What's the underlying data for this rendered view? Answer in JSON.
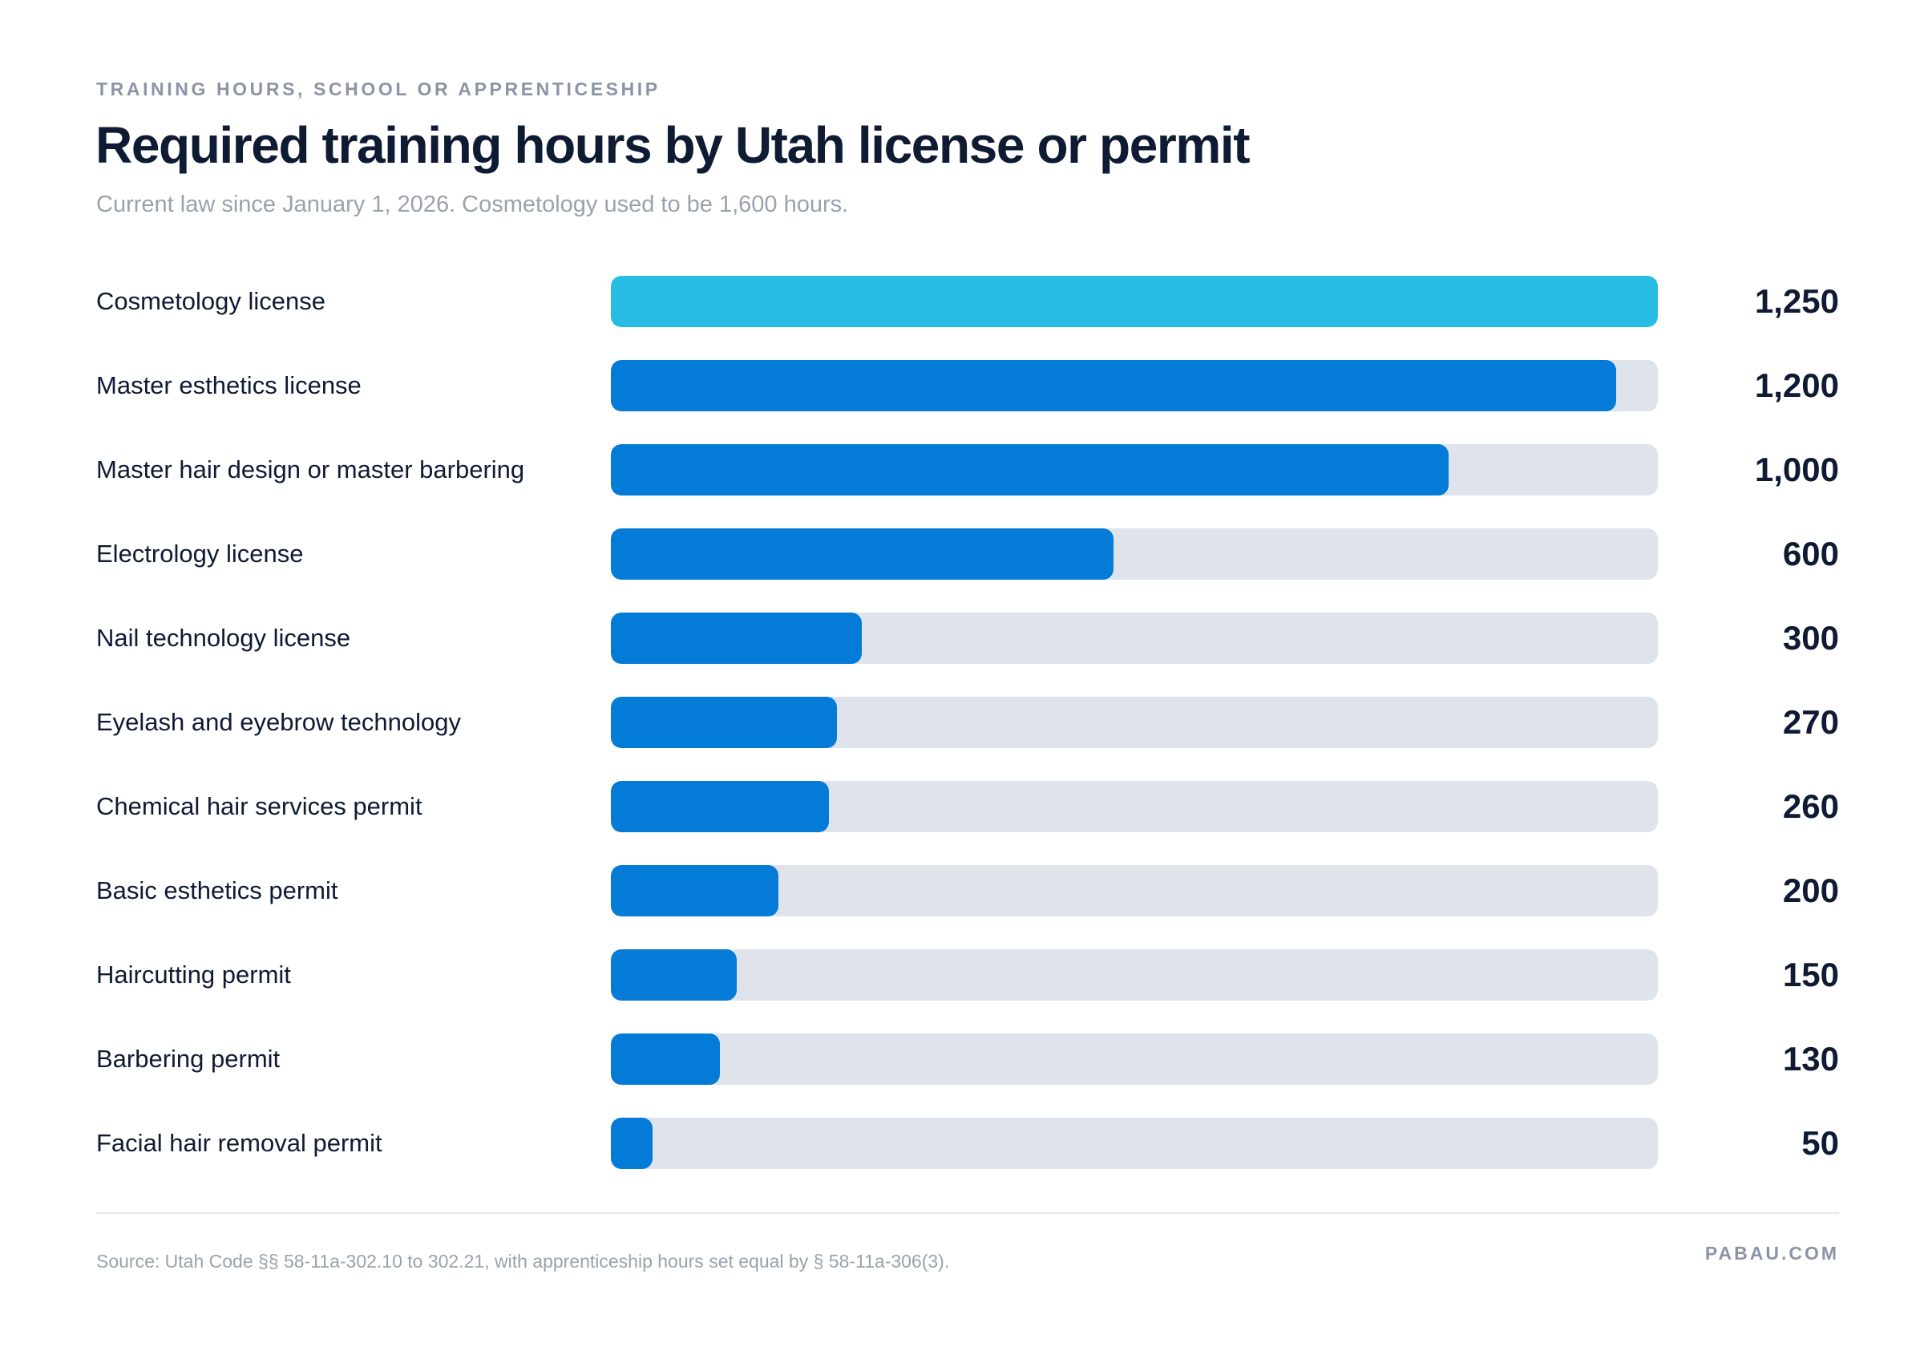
{
  "header": {
    "eyebrow": "TRAINING HOURS, SCHOOL OR APPRENTICESHIP",
    "title": "Required training hours by Utah license or permit",
    "subtitle": "Current law since January 1, 2026. Cosmetology used to be 1,600 hours."
  },
  "chart_data": {
    "type": "bar",
    "orientation": "horizontal",
    "title": "Required training hours by Utah license or permit",
    "subtitle": "Current law since January 1, 2026. Cosmetology used to be 1,600 hours.",
    "xlim": [
      0,
      1250
    ],
    "grid": false,
    "categories": [
      "Cosmetology license",
      "Master esthetics license",
      "Master hair design or master barbering",
      "Electrology license",
      "Nail technology license",
      "Eyelash and eyebrow technology",
      "Chemical hair services permit",
      "Basic esthetics permit",
      "Haircutting permit",
      "Barbering permit",
      "Facial hair removal permit"
    ],
    "values": [
      1250,
      1200,
      1000,
      600,
      300,
      270,
      260,
      200,
      150,
      130,
      50
    ],
    "value_labels": [
      "1,250",
      "1,200",
      "1,000",
      "600",
      "300",
      "270",
      "260",
      "200",
      "150",
      "130",
      "50"
    ],
    "highlight_index": 0,
    "colors": {
      "highlight": "#27bce3",
      "bar": "#047bd6",
      "track": "#dfe3ec"
    }
  },
  "footer": {
    "source": "Source: Utah Code §§ 58-11a-302.10 to 302.21, with apprenticeship hours set equal by § 58-11a-306(3).",
    "brand": "PABAU.COM"
  }
}
